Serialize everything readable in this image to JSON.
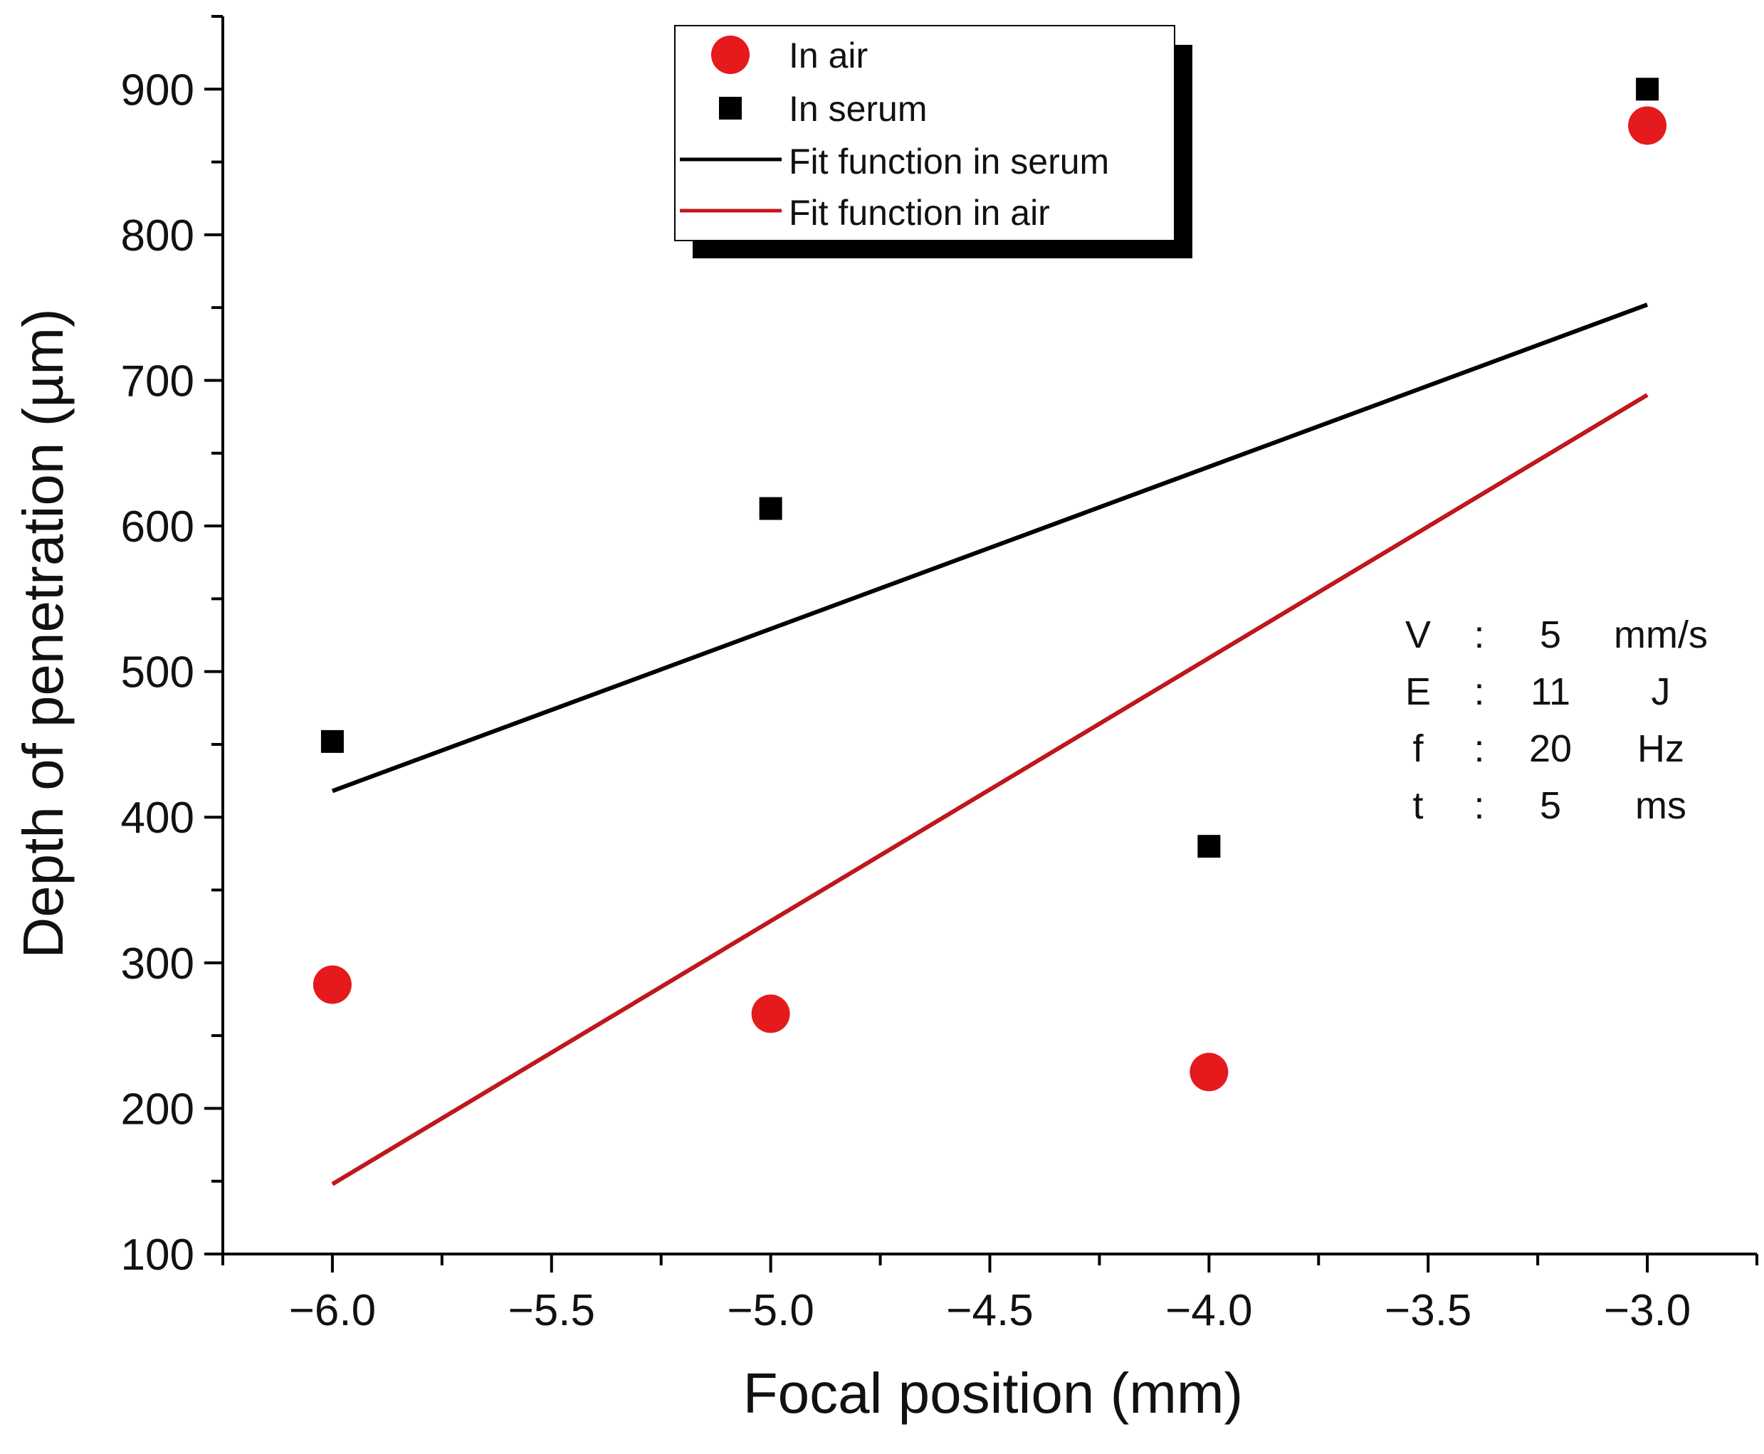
{
  "chart_data": {
    "type": "scatter",
    "xlabel": "Focal position (mm)",
    "ylabel": "Depth of penetration (µm)",
    "xlim": [
      -6.25,
      -2.75
    ],
    "ylim": [
      100,
      950
    ],
    "xticks": [
      -6.0,
      -5.5,
      -5.0,
      -4.5,
      -4.0,
      -3.5,
      -3.0
    ],
    "xtick_labels": [
      "−6.0",
      "−5.5",
      "−5.0",
      "−4.5",
      "−4.0",
      "−3.5",
      "−3.0"
    ],
    "yticks": [
      100,
      200,
      300,
      400,
      500,
      600,
      700,
      800,
      900
    ],
    "ytick_labels": [
      "100",
      "200",
      "300",
      "400",
      "500",
      "600",
      "700",
      "800",
      "900"
    ],
    "series": [
      {
        "name": "In air",
        "kind": "scatter",
        "marker": "circle",
        "color": "#e41a1c",
        "x": [
          -6.0,
          -5.0,
          -4.0,
          -3.0
        ],
        "y": [
          285,
          265,
          225,
          875
        ]
      },
      {
        "name": "In serum",
        "kind": "scatter",
        "marker": "square",
        "color": "#000000",
        "x": [
          -6.0,
          -5.0,
          -4.0,
          -3.0
        ],
        "y": [
          452,
          612,
          380,
          900
        ]
      },
      {
        "name": "Fit function in serum",
        "kind": "line",
        "color": "#000000",
        "x": [
          -6.0,
          -3.0
        ],
        "y": [
          418,
          752
        ]
      },
      {
        "name": "Fit function in air",
        "kind": "line",
        "color": "#c0171c",
        "x": [
          -6.0,
          -3.0
        ],
        "y": [
          148,
          690
        ]
      }
    ],
    "legend_position": "top-center",
    "annotation": {
      "rows": [
        {
          "symbol": "V",
          "sep": ":",
          "value": "5",
          "unit": "mm/s"
        },
        {
          "symbol": "E",
          "sep": ":",
          "value": "11",
          "unit": "J"
        },
        {
          "symbol": "f",
          "sep": ":",
          "value": "20",
          "unit": "Hz"
        },
        {
          "symbol": "t",
          "sep": ":",
          "value": "5",
          "unit": "ms"
        }
      ]
    }
  }
}
